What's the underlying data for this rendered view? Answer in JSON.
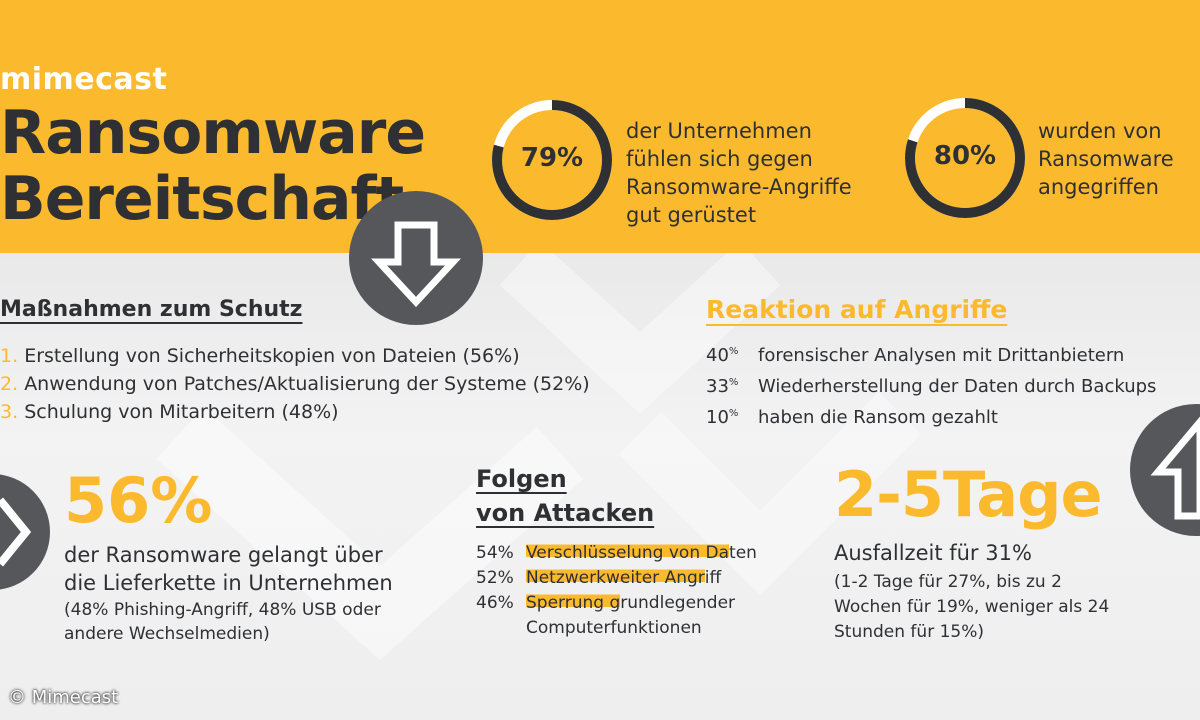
{
  "header": {
    "logo": "mimecast",
    "title_line1": "Ransomware",
    "title_line2": "Bereitschaft"
  },
  "stats": [
    {
      "value": "79%",
      "text": [
        "der Unternehmen",
        "fühlen sich gegen",
        "Ransomware-Angriffe",
        "gut gerüstet"
      ],
      "fraction": 0.79
    },
    {
      "value": "80%",
      "text": [
        "wurden von",
        "Ransomware",
        "angegriffen"
      ],
      "fraction": 0.8
    }
  ],
  "schutz": {
    "heading": "Maßnahmen zum Schutz",
    "items": [
      {
        "num": "1.",
        "text": "Erstellung von Sicherheitskopien von Dateien (56%)"
      },
      {
        "num": "2.",
        "text": "Anwendung von Patches/Aktualisierung der Systeme (52%)"
      },
      {
        "num": "3.",
        "text": "Schulung von Mitarbeitern (48%)"
      }
    ]
  },
  "reaktion": {
    "heading": "Reaktion auf Angriffe",
    "items": [
      {
        "num": "40",
        "text": "forensischer Analysen mit Drittanbietern"
      },
      {
        "num": "33",
        "text": "Wiederherstellung der Daten durch Backups"
      },
      {
        "num": "10",
        "text": "haben die Ransom gezahlt"
      }
    ],
    "unit": "%"
  },
  "lieferkette": {
    "big": "56%",
    "line1": "der Ransomware gelangt über",
    "line2": "die Lieferkette in Unternehmen",
    "line3": "(48% Phishing-Angriff, 48% USB oder",
    "line4": "andere Wechselmedien)"
  },
  "folgen": {
    "heading1": "Folgen",
    "heading2": "von Attacken",
    "items": [
      {
        "pct": "54%",
        "hl": "Verschlüsselung von Da",
        "rest": "ten"
      },
      {
        "pct": "52%",
        "hl": "Netzwerkweiter Angr",
        "rest": "iff"
      },
      {
        "pct": "46%",
        "hl": "Sperrung g",
        "rest": "rundlegender"
      }
    ],
    "cont": "Computerfunktionen"
  },
  "ausfall": {
    "big": "2-5Tage",
    "line1": "Ausfallzeit für 31%",
    "line2": "(1-2 Tage für 27%, bis zu 2",
    "line3": "Wochen für 19%, weniger als 24",
    "line4": "Stunden für 15%)"
  },
  "copyright": "© Mimecast",
  "colors": {
    "accent": "#fbba2e",
    "dark": "#2f3034",
    "ring_track": "#ffffff"
  }
}
